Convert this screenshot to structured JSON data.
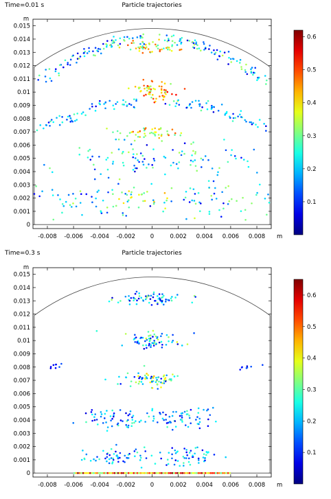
{
  "chart_data": [
    {
      "type": "scatter",
      "title": "Particle trajectories",
      "time_label": "Time=0.01 s",
      "xunit": "m",
      "yunit": "m",
      "xlim": [
        -0.0091,
        0.0091
      ],
      "ylim": [
        -0.0003,
        0.0155
      ],
      "xticks": [
        -0.008,
        -0.006,
        -0.004,
        -0.002,
        0,
        0.002,
        0.004,
        0.006,
        0.008
      ],
      "xtick_labels": [
        "-0.008",
        "-0.006",
        "-0.004",
        "-0.002",
        "0",
        "0.002",
        "0.004",
        "0.006",
        "0.008"
      ],
      "yticks": [
        0,
        0.001,
        0.002,
        0.003,
        0.004,
        0.005,
        0.006,
        0.007,
        0.008,
        0.009,
        0.01,
        0.011,
        0.012,
        0.013,
        0.014,
        0.015
      ],
      "ytick_labels": [
        "0",
        "0.001",
        "0.002",
        "0.003",
        "0.004",
        "0.005",
        "0.006",
        "0.007",
        "0.008",
        "0.009",
        "0.01",
        "0.011",
        "0.012",
        "0.013",
        "0.014",
        "0.015"
      ],
      "colorbar": {
        "min": 0,
        "max": 0.62,
        "ticks": [
          0.1,
          0.2,
          0.3,
          0.4,
          0.5,
          0.6
        ],
        "tick_labels": [
          "0.1",
          "0.2",
          "0.3",
          "0.4",
          "0.5",
          "0.6"
        ]
      },
      "domain_outline": {
        "x_half_width": 0.009,
        "wall_top": 0.0119,
        "dome_apex": 0.0148,
        "bottom": 0
      },
      "clusters": [
        {
          "cx": 0,
          "cy": 0.01335,
          "sx": 0.0011,
          "sy": 0.00025,
          "n": 50,
          "vmin": 0.25,
          "vmax": 0.5
        },
        {
          "cx": 0,
          "cy": 0.0101,
          "sx": 0.0009,
          "sy": 0.0004,
          "n": 60,
          "vmin": 0.3,
          "vmax": 0.55
        },
        {
          "cx": 0,
          "cy": 0.0069,
          "sx": 0.0011,
          "sy": 0.00025,
          "n": 45,
          "vmin": 0.28,
          "vmax": 0.5
        },
        {
          "cx": -0.003,
          "cy": 0.0049,
          "sx": 0.003,
          "sy": 0.0007,
          "n": 55,
          "vmin": 0.05,
          "vmax": 0.35
        },
        {
          "cx": 0.003,
          "cy": 0.0049,
          "sx": 0.003,
          "sy": 0.0007,
          "n": 55,
          "vmin": 0.05,
          "vmax": 0.35
        },
        {
          "cx": -0.0055,
          "cy": 0.0017,
          "sx": 0.0025,
          "sy": 0.0008,
          "n": 55,
          "vmin": 0.05,
          "vmax": 0.35
        },
        {
          "cx": 0.0055,
          "cy": 0.0017,
          "sx": 0.0025,
          "sy": 0.0008,
          "n": 55,
          "vmin": 0.05,
          "vmax": 0.35
        },
        {
          "cx": 0,
          "cy": 0.0018,
          "sx": 0.002,
          "sy": 0.0006,
          "n": 35,
          "vmin": 0.15,
          "vmax": 0.45
        }
      ],
      "arcs": [
        {
          "x0": -0.0088,
          "x1": -0.0005,
          "y_at_edge": 0.0108,
          "y_at_center": 0.0141,
          "n": 80,
          "vmin": 0.05,
          "vmax": 0.35
        },
        {
          "x0": 0.0005,
          "x1": 0.0088,
          "y_at_edge": 0.0108,
          "y_at_center": 0.0141,
          "n": 80,
          "vmin": 0.05,
          "vmax": 0.35
        },
        {
          "x0": -0.0088,
          "x1": -0.001,
          "y_at_edge": 0.0073,
          "y_at_center": 0.0093,
          "n": 60,
          "vmin": 0.05,
          "vmax": 0.3
        },
        {
          "x0": 0.001,
          "x1": 0.0088,
          "y_at_edge": 0.0073,
          "y_at_center": 0.0093,
          "n": 60,
          "vmin": 0.05,
          "vmax": 0.3
        }
      ]
    },
    {
      "type": "scatter",
      "title": "Particle trajectories",
      "time_label": "Time=0.3 s",
      "xunit": "m",
      "yunit": "m",
      "xlim": [
        -0.0091,
        0.0091
      ],
      "ylim": [
        -0.0003,
        0.0155
      ],
      "xticks": [
        -0.008,
        -0.006,
        -0.004,
        -0.002,
        0,
        0.002,
        0.004,
        0.006,
        0.008
      ],
      "xtick_labels": [
        "-0.008",
        "-0.006",
        "-0.004",
        "-0.002",
        "0",
        "0.002",
        "0.004",
        "0.006",
        "0.008"
      ],
      "yticks": [
        0,
        0.001,
        0.002,
        0.003,
        0.004,
        0.005,
        0.006,
        0.007,
        0.008,
        0.009,
        0.01,
        0.011,
        0.012,
        0.013,
        0.014,
        0.015
      ],
      "ytick_labels": [
        "0",
        "0.001",
        "0.002",
        "0.003",
        "0.004",
        "0.005",
        "0.006",
        "0.007",
        "0.008",
        "0.009",
        "0.01",
        "0.011",
        "0.012",
        "0.013",
        "0.014",
        "0.015"
      ],
      "colorbar": {
        "min": 0,
        "max": 0.65,
        "ticks": [
          0.1,
          0.2,
          0.3,
          0.4,
          0.5,
          0.6
        ],
        "tick_labels": [
          "0.1",
          "0.2",
          "0.3",
          "0.4",
          "0.5",
          "0.6"
        ]
      },
      "domain_outline": {
        "x_half_width": 0.009,
        "wall_top": 0.0119,
        "dome_apex": 0.0148,
        "bottom": 0
      },
      "clusters": [
        {
          "cx": 0,
          "cy": 0.01315,
          "sx": 0.0013,
          "sy": 0.00025,
          "n": 70,
          "vmin": 0.05,
          "vmax": 0.35
        },
        {
          "cx": 0,
          "cy": 0.01,
          "sx": 0.0011,
          "sy": 0.00028,
          "n": 70,
          "vmin": 0.05,
          "vmax": 0.4
        },
        {
          "cx": 0,
          "cy": 0.007,
          "sx": 0.0013,
          "sy": 0.00028,
          "n": 75,
          "vmin": 0.05,
          "vmax": 0.45
        },
        {
          "cx": -0.0025,
          "cy": 0.0041,
          "sx": 0.0013,
          "sy": 0.0004,
          "n": 60,
          "vmin": 0.05,
          "vmax": 0.3
        },
        {
          "cx": 0.0023,
          "cy": 0.0041,
          "sx": 0.0013,
          "sy": 0.0004,
          "n": 60,
          "vmin": 0.05,
          "vmax": 0.3
        },
        {
          "cx": -0.0028,
          "cy": 0.0012,
          "sx": 0.0014,
          "sy": 0.00035,
          "n": 55,
          "vmin": 0.05,
          "vmax": 0.3
        },
        {
          "cx": 0.0028,
          "cy": 0.0012,
          "sx": 0.0014,
          "sy": 0.00035,
          "n": 55,
          "vmin": 0.05,
          "vmax": 0.3
        },
        {
          "cx": -0.0074,
          "cy": 0.008,
          "sx": 0.0004,
          "sy": 0.00015,
          "n": 8,
          "vmin": 0.02,
          "vmax": 0.15
        },
        {
          "cx": 0.0072,
          "cy": 0.008,
          "sx": 0.0004,
          "sy": 0.00015,
          "n": 8,
          "vmin": 0.02,
          "vmax": 0.15
        }
      ],
      "bottom_layer": {
        "x0": -0.006,
        "x1": 0.006,
        "y": 0,
        "n": 90,
        "vmin": 0.3,
        "vmax": 0.65
      },
      "arcs": []
    }
  ]
}
